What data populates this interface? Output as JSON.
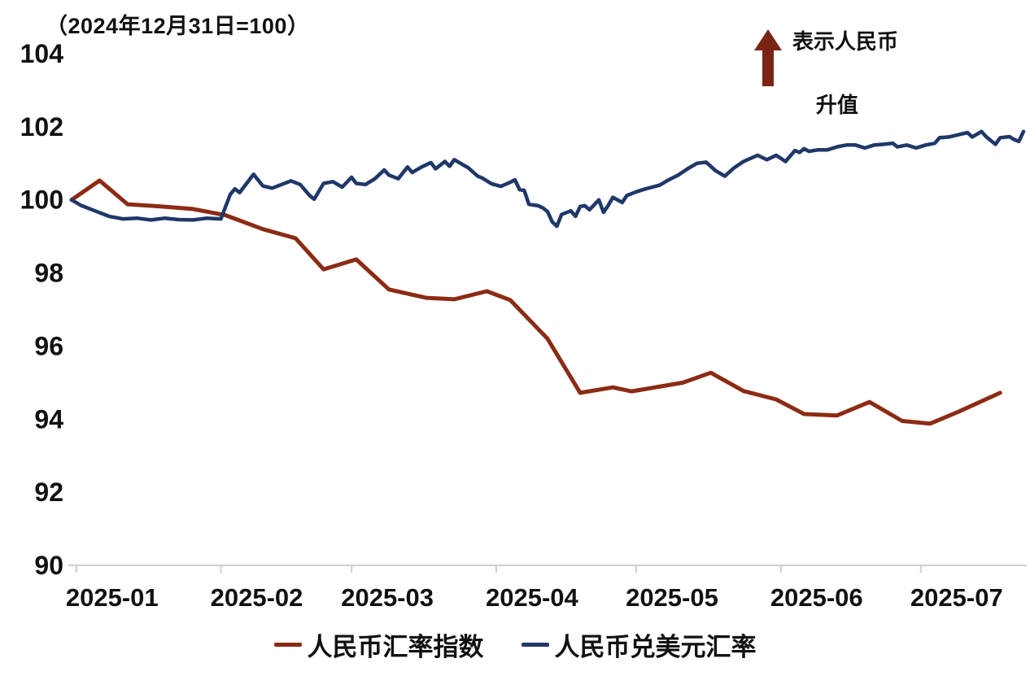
{
  "chart_data": {
    "type": "line",
    "title": "（2024年12月31日=100）",
    "x_axis": {
      "tick_labels": [
        "2025-01",
        "2025-02",
        "2025-03",
        "2025-04",
        "2025-05",
        "2025-06",
        "2025-07"
      ],
      "tick_days": [
        1,
        32,
        60,
        91,
        121,
        152,
        182
      ],
      "domain_days": [
        0,
        204
      ]
    },
    "y_axis": {
      "ticks": [
        104,
        102,
        100,
        98,
        96,
        94,
        92,
        90
      ],
      "range": [
        90,
        104
      ],
      "grid": false
    },
    "annotation": {
      "arrow": "up",
      "arrow_color": "#7B2415",
      "line1": "表示人民币",
      "line2": "升值"
    },
    "legend_position": "bottom",
    "axis_color": "#CFCFCF",
    "text_color": "#111111",
    "series": [
      {
        "name": "人民币汇率指数",
        "color": "#8C2B14",
        "stroke_width": 5,
        "points": [
          [
            0,
            100.0
          ],
          [
            6,
            100.53
          ],
          [
            12,
            99.88
          ],
          [
            19,
            99.82
          ],
          [
            26,
            99.75
          ],
          [
            33,
            99.58
          ],
          [
            41,
            99.2
          ],
          [
            48,
            98.95
          ],
          [
            54,
            98.1
          ],
          [
            61,
            98.37
          ],
          [
            68,
            97.55
          ],
          [
            76,
            97.32
          ],
          [
            82,
            97.28
          ],
          [
            89,
            97.5
          ],
          [
            94,
            97.26
          ],
          [
            102,
            96.2
          ],
          [
            109,
            94.72
          ],
          [
            116,
            94.87
          ],
          [
            120,
            94.76
          ],
          [
            131,
            95.0
          ],
          [
            137,
            95.27
          ],
          [
            144,
            94.77
          ],
          [
            151,
            94.54
          ],
          [
            157,
            94.14
          ],
          [
            164,
            94.1
          ],
          [
            171,
            94.47
          ],
          [
            178,
            93.95
          ],
          [
            184,
            93.88
          ],
          [
            190,
            94.2
          ],
          [
            199,
            94.72
          ]
        ]
      },
      {
        "name": "人民币兑美元汇率",
        "color": "#1F3868",
        "stroke_width": 4.5,
        "points": [
          [
            0,
            100.0
          ],
          [
            2,
            99.85
          ],
          [
            5,
            99.7
          ],
          [
            8,
            99.55
          ],
          [
            11,
            99.48
          ],
          [
            14,
            99.5
          ],
          [
            17,
            99.45
          ],
          [
            20,
            99.5
          ],
          [
            23,
            99.46
          ],
          [
            26,
            99.45
          ],
          [
            29,
            99.5
          ],
          [
            32,
            99.48
          ],
          [
            34,
            100.15
          ],
          [
            35,
            100.3
          ],
          [
            36,
            100.2
          ],
          [
            39,
            100.7
          ],
          [
            41,
            100.38
          ],
          [
            43,
            100.32
          ],
          [
            45,
            100.42
          ],
          [
            47,
            100.52
          ],
          [
            49,
            100.42
          ],
          [
            51,
            100.12
          ],
          [
            52,
            100.02
          ],
          [
            54,
            100.45
          ],
          [
            56,
            100.5
          ],
          [
            58,
            100.35
          ],
          [
            60,
            100.62
          ],
          [
            61,
            100.45
          ],
          [
            63,
            100.42
          ],
          [
            65,
            100.58
          ],
          [
            67,
            100.82
          ],
          [
            68,
            100.68
          ],
          [
            70,
            100.58
          ],
          [
            72,
            100.9
          ],
          [
            73,
            100.75
          ],
          [
            75,
            100.9
          ],
          [
            77,
            101.02
          ],
          [
            78,
            100.85
          ],
          [
            80,
            101.05
          ],
          [
            81,
            100.92
          ],
          [
            82,
            101.1
          ],
          [
            84,
            100.95
          ],
          [
            85,
            100.88
          ],
          [
            87,
            100.65
          ],
          [
            88,
            100.6
          ],
          [
            90,
            100.44
          ],
          [
            92,
            100.37
          ],
          [
            94,
            100.48
          ],
          [
            95,
            100.55
          ],
          [
            96,
            100.28
          ],
          [
            97,
            100.26
          ],
          [
            98,
            99.88
          ],
          [
            100,
            99.84
          ],
          [
            101,
            99.78
          ],
          [
            102,
            99.68
          ],
          [
            103,
            99.4
          ],
          [
            104,
            99.28
          ],
          [
            105,
            99.6
          ],
          [
            107,
            99.7
          ],
          [
            108,
            99.55
          ],
          [
            109,
            99.82
          ],
          [
            110,
            99.84
          ],
          [
            111,
            99.73
          ],
          [
            113,
            100.0
          ],
          [
            114,
            99.66
          ],
          [
            115,
            99.85
          ],
          [
            116,
            100.07
          ],
          [
            118,
            99.93
          ],
          [
            119,
            100.12
          ],
          [
            121,
            100.22
          ],
          [
            123,
            100.3
          ],
          [
            126,
            100.4
          ],
          [
            128,
            100.55
          ],
          [
            130,
            100.68
          ],
          [
            132,
            100.85
          ],
          [
            134,
            101.0
          ],
          [
            136,
            101.03
          ],
          [
            138,
            100.8
          ],
          [
            140,
            100.65
          ],
          [
            142,
            100.88
          ],
          [
            144,
            101.05
          ],
          [
            147,
            101.22
          ],
          [
            149,
            101.1
          ],
          [
            151,
            101.22
          ],
          [
            153,
            101.05
          ],
          [
            155,
            101.35
          ],
          [
            156,
            101.3
          ],
          [
            157,
            101.4
          ],
          [
            158,
            101.33
          ],
          [
            160,
            101.37
          ],
          [
            162,
            101.37
          ],
          [
            164,
            101.45
          ],
          [
            166,
            101.5
          ],
          [
            168,
            101.5
          ],
          [
            170,
            101.42
          ],
          [
            172,
            101.5
          ],
          [
            174,
            101.52
          ],
          [
            176,
            101.55
          ],
          [
            177,
            101.45
          ],
          [
            179,
            101.5
          ],
          [
            181,
            101.42
          ],
          [
            183,
            101.5
          ],
          [
            185,
            101.55
          ],
          [
            186,
            101.7
          ],
          [
            188,
            101.72
          ],
          [
            190,
            101.78
          ],
          [
            192,
            101.84
          ],
          [
            193,
            101.72
          ],
          [
            195,
            101.87
          ],
          [
            196,
            101.73
          ],
          [
            197,
            101.62
          ],
          [
            198,
            101.52
          ],
          [
            199,
            101.7
          ],
          [
            201,
            101.73
          ],
          [
            202,
            101.65
          ],
          [
            203,
            101.6
          ],
          [
            204,
            101.87
          ]
        ]
      }
    ]
  }
}
